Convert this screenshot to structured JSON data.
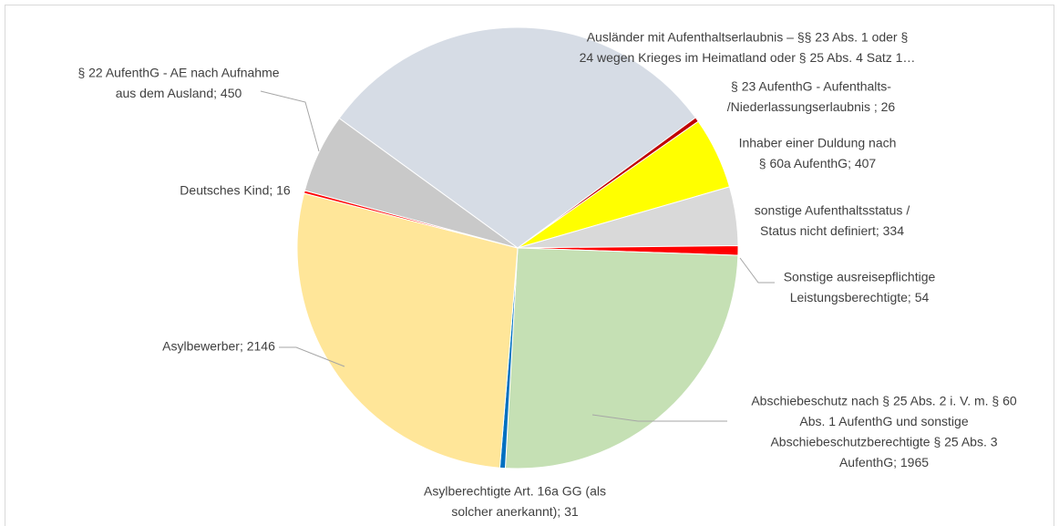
{
  "chart_data": {
    "type": "pie",
    "labels": [
      [
        "Ausländer mit Aufenthaltserlaubnis – §§ 23 Abs. 1 oder §",
        "24 wegen Krieges im Heimatland oder § 25 Abs. 4 Satz 1…"
      ],
      [
        "§ 23 AufenthG - Aufenthalts-",
        "/Niederlassungserlaubnis ; 26"
      ],
      [
        "Inhaber einer Duldung nach",
        "§ 60a AufenthG; 407"
      ],
      [
        "sonstige Aufenthaltsstatus /",
        "Status nicht definiert; 334"
      ],
      [
        "Sonstige ausreisepflichtige",
        "Leistungsberechtigte; 54"
      ],
      [
        "Abschiebeschutz nach § 25 Abs. 2 i. V. m. § 60",
        "Abs. 1 AufenthG und sonstige",
        "Abschiebeschutzberechtigte § 25 Abs. 3",
        "AufenthG; 1965"
      ],
      [
        "Asylberechtigte Art. 16a GG (als",
        "solcher anerkannt); 31"
      ],
      [
        "Asylbewerber; 2146"
      ],
      [
        "Deutsches Kind; 16"
      ],
      [
        "§ 22 AufenthG - AE nach Aufnahme",
        "aus dem Ausland; 450"
      ]
    ],
    "values": [
      2320,
      26,
      407,
      334,
      54,
      1965,
      31,
      2146,
      16,
      450
    ],
    "colors": [
      "#d6dce5",
      "#c00000",
      "#ffff00",
      "#d9d9d9",
      "#ff0000",
      "#c5e0b4",
      "#0070c0",
      "#ffe699",
      "#ff0000",
      "#c9c9c9"
    ]
  }
}
